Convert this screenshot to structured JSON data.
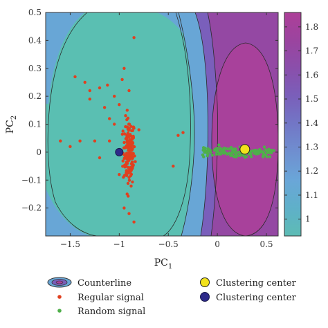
{
  "chart_data": {
    "type": "contour",
    "xlabel": "PC",
    "xlabel_sub": "1",
    "ylabel": "PC",
    "ylabel_sub": "2",
    "xlim": [
      -1.75,
      0.62
    ],
    "ylim": [
      -0.3,
      0.5
    ],
    "xticks": [
      {
        "v": -1.5,
        "label": "−1.5"
      },
      {
        "v": -1.0,
        "label": "−1"
      },
      {
        "v": -0.5,
        "label": "−0.5"
      },
      {
        "v": 0.0,
        "label": "0"
      },
      {
        "v": 0.5,
        "label": "0.5"
      }
    ],
    "yticks": [
      {
        "v": 0.5,
        "label": "0.5"
      },
      {
        "v": 0.4,
        "label": "0.4"
      },
      {
        "v": 0.3,
        "label": "0.3"
      },
      {
        "v": 0.2,
        "label": "0.2"
      },
      {
        "v": 0.1,
        "label": "0.1"
      },
      {
        "v": 0.0,
        "label": "0"
      },
      {
        "v": -0.1,
        "label": "−0.1"
      },
      {
        "v": -0.2,
        "label": "−0.2"
      }
    ],
    "colorbar": {
      "range": [
        0.93,
        1.86
      ],
      "ticks": [
        {
          "v": 1.8,
          "label": "1.8"
        },
        {
          "v": 1.7,
          "label": "1.7"
        },
        {
          "v": 1.6,
          "label": "1.6"
        },
        {
          "v": 1.5,
          "label": "1.5"
        },
        {
          "v": 1.4,
          "label": "1.4"
        },
        {
          "v": 1.3,
          "label": "1.3"
        },
        {
          "v": 1.2,
          "label": "1.2"
        },
        {
          "v": 1.1,
          "label": "1.1"
        },
        {
          "v": 1.0,
          "label": "1"
        }
      ],
      "colors": [
        "#5dbcb4",
        "#5fb0c9",
        "#6aa6d8",
        "#6f8fd0",
        "#7277c6",
        "#7a5fba",
        "#8a4fab",
        "#9b449f",
        "#ad3f98"
      ]
    },
    "contour_colors": {
      "background": "#5abfb2",
      "level_blue": "#68a6d6",
      "level_purple": "#7a5fbb",
      "level_magenta_outer": "#9448a3",
      "level_magenta_inner": "#a8419b"
    },
    "series": [
      {
        "name": "Regular signal",
        "color": "#e0401f",
        "core": {
          "x": -0.9,
          "y": 0.0,
          "n": 160,
          "sx": 0.03,
          "sy": 0.06
        },
        "points": [
          {
            "x": -1.6,
            "y": 0.04
          },
          {
            "x": -1.5,
            "y": 0.02
          },
          {
            "x": -1.4,
            "y": 0.04
          },
          {
            "x": -1.45,
            "y": 0.27
          },
          {
            "x": -1.35,
            "y": 0.25
          },
          {
            "x": -1.3,
            "y": 0.22
          },
          {
            "x": -1.2,
            "y": 0.23
          },
          {
            "x": -1.15,
            "y": 0.16
          },
          {
            "x": -1.1,
            "y": 0.12
          },
          {
            "x": -1.05,
            "y": 0.2
          },
          {
            "x": -1.0,
            "y": 0.17
          },
          {
            "x": -1.25,
            "y": 0.04
          },
          {
            "x": -1.2,
            "y": -0.02
          },
          {
            "x": -1.1,
            "y": 0.04
          },
          {
            "x": -0.85,
            "y": 0.41
          },
          {
            "x": -0.9,
            "y": 0.22
          },
          {
            "x": -0.95,
            "y": 0.3
          },
          {
            "x": -0.4,
            "y": 0.06
          },
          {
            "x": -0.35,
            "y": 0.07
          },
          {
            "x": -0.45,
            "y": -0.05
          },
          {
            "x": -0.95,
            "y": -0.2
          },
          {
            "x": -0.9,
            "y": -0.22
          },
          {
            "x": -0.85,
            "y": -0.25
          },
          {
            "x": -0.92,
            "y": -0.15
          },
          {
            "x": -1.3,
            "y": 0.19
          },
          {
            "x": -1.0,
            "y": -0.08
          },
          {
            "x": -0.8,
            "y": 0.08
          },
          {
            "x": -1.12,
            "y": 0.24
          },
          {
            "x": -1.05,
            "y": 0.1
          },
          {
            "x": -0.97,
            "y": 0.26
          }
        ]
      },
      {
        "name": "Random signal",
        "color": "#4faf4a",
        "band": {
          "x0": -0.15,
          "x1": 0.58,
          "y": 0.0,
          "n": 140,
          "sy": 0.008
        }
      }
    ],
    "centers": [
      {
        "name": "Clustering center",
        "x": -1.0,
        "y": 0.0,
        "fill": "#2d2a8a",
        "stroke": "#1a1a4a"
      },
      {
        "name": "Clustering center",
        "x": 0.28,
        "y": 0.01,
        "fill": "#f2e21c",
        "stroke": "#222222"
      }
    ],
    "legend": [
      {
        "label": "Counterline",
        "marker": "contour"
      },
      {
        "label": "Regular signal",
        "marker": "dot",
        "color": "#e0401f"
      },
      {
        "label": "Random signal",
        "marker": "dot",
        "color": "#4faf4a"
      },
      {
        "label": "Clustering center",
        "marker": "circle",
        "color": "#f2e21c"
      },
      {
        "label": "Clustering center",
        "marker": "circle",
        "color": "#2d2a8a"
      }
    ]
  }
}
